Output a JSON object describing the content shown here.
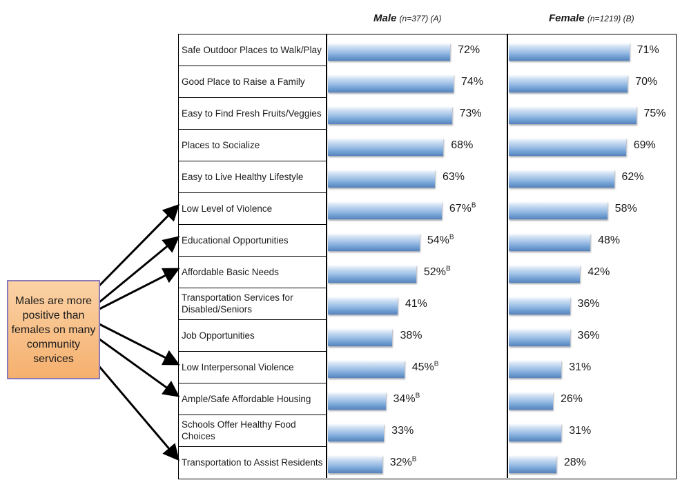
{
  "headers": {
    "male": {
      "label": "Male",
      "n": "(n=377) (A)"
    },
    "female": {
      "label": "Female",
      "n": "(n=1219) (B)"
    }
  },
  "callout": {
    "text": "Males are more positive than females on many community services"
  },
  "chart_data": {
    "type": "bar",
    "orientation": "horizontal",
    "unit": "%",
    "categories": [
      "Safe Outdoor Places to Walk/Play",
      "Good Place to Raise a Family",
      "Easy to Find Fresh Fruits/Veggies",
      "Places to Socialize",
      "Easy to Live Healthy Lifestyle",
      "Low Level of Violence",
      "Educational Opportunities",
      "Affordable Basic Needs",
      "Transportation Services for Disabled/Seniors",
      "Job Opportunities",
      "Low Interpersonal Violence",
      "Ample/Safe Affordable Housing",
      "Schools Offer Healthy Food Choices",
      "Transportation to Assist Residents"
    ],
    "series": [
      {
        "name": "Male (n=377) (A)",
        "values": [
          72,
          74,
          73,
          68,
          63,
          67,
          54,
          52,
          41,
          38,
          45,
          34,
          33,
          32
        ],
        "significance": [
          "",
          "",
          "",
          "",
          "",
          "B",
          "B",
          "B",
          "",
          "",
          "B",
          "B",
          "",
          "B"
        ]
      },
      {
        "name": "Female (n=1219) (B)",
        "values": [
          71,
          70,
          75,
          69,
          62,
          58,
          48,
          42,
          36,
          36,
          31,
          26,
          31,
          28
        ],
        "significance": [
          "",
          "",
          "",
          "",
          "",
          "",
          "",
          "",
          "",
          "",
          "",
          "",
          "",
          ""
        ]
      }
    ],
    "xlim": [
      0,
      100
    ],
    "arrow_targets": [
      5,
      6,
      7,
      10,
      11,
      13
    ]
  }
}
